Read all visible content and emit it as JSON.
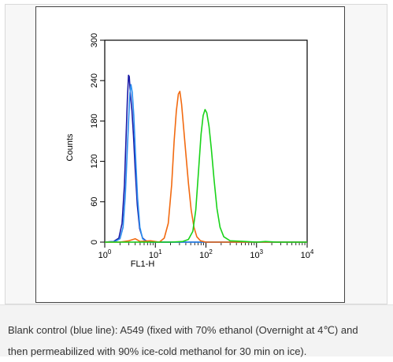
{
  "chart_data": {
    "type": "line",
    "xlabel": "FL1-H",
    "ylabel": "Counts",
    "xscale": "log",
    "xlim": [
      1,
      10000
    ],
    "ylim": [
      0,
      300
    ],
    "x_ticks": [
      {
        "value": 1,
        "base": "10",
        "exp": "0"
      },
      {
        "value": 10,
        "base": "10",
        "exp": "1"
      },
      {
        "value": 100,
        "base": "10",
        "exp": "2"
      },
      {
        "value": 1000,
        "base": "10",
        "exp": "3"
      },
      {
        "value": 10000,
        "base": "10",
        "exp": "4"
      }
    ],
    "y_ticks": [
      "0",
      "60",
      "120",
      "180",
      "240",
      "300"
    ],
    "series": [
      {
        "color": "#1a1aa6",
        "points": [
          [
            1.0,
            0
          ],
          [
            1.5,
            1
          ],
          [
            1.9,
            6
          ],
          [
            2.2,
            28
          ],
          [
            2.45,
            85
          ],
          [
            2.65,
            160
          ],
          [
            2.8,
            212
          ],
          [
            2.95,
            248
          ],
          [
            3.05,
            246
          ],
          [
            3.2,
            222
          ],
          [
            3.45,
            195
          ],
          [
            3.7,
            158
          ],
          [
            4.0,
            108
          ],
          [
            4.4,
            55
          ],
          [
            4.9,
            20
          ],
          [
            5.6,
            6
          ],
          [
            6.5,
            2
          ],
          [
            8,
            0
          ],
          [
            10000,
            0
          ]
        ]
      },
      {
        "color": "#2b8ff0",
        "points": [
          [
            1.0,
            0
          ],
          [
            1.6,
            1
          ],
          [
            2.0,
            5
          ],
          [
            2.3,
            22
          ],
          [
            2.55,
            70
          ],
          [
            2.8,
            140
          ],
          [
            3.0,
            190
          ],
          [
            3.15,
            222
          ],
          [
            3.3,
            234
          ],
          [
            3.5,
            222
          ],
          [
            3.75,
            188
          ],
          [
            4.05,
            130
          ],
          [
            4.45,
            66
          ],
          [
            4.95,
            22
          ],
          [
            5.6,
            5
          ],
          [
            6.6,
            1
          ],
          [
            8.5,
            0
          ],
          [
            10000,
            0
          ]
        ]
      },
      {
        "color": "#f26a10",
        "points": [
          [
            1.0,
            0
          ],
          [
            2.0,
            0
          ],
          [
            3.0,
            2
          ],
          [
            4.0,
            5
          ],
          [
            5.0,
            1
          ],
          [
            8.0,
            2
          ],
          [
            12,
            0
          ],
          [
            15,
            6
          ],
          [
            18,
            28
          ],
          [
            21,
            85
          ],
          [
            23.5,
            150
          ],
          [
            26,
            195
          ],
          [
            28.5,
            220
          ],
          [
            30.5,
            224
          ],
          [
            33,
            205
          ],
          [
            36,
            172
          ],
          [
            40,
            132
          ],
          [
            45,
            88
          ],
          [
            51,
            48
          ],
          [
            58,
            22
          ],
          [
            66,
            8
          ],
          [
            78,
            2
          ],
          [
            100,
            0
          ],
          [
            10000,
            0
          ]
        ]
      },
      {
        "color": "#19d319",
        "points": [
          [
            1.0,
            0
          ],
          [
            20,
            0
          ],
          [
            35,
            1
          ],
          [
            45,
            4
          ],
          [
            55,
            16
          ],
          [
            63,
            48
          ],
          [
            72,
            110
          ],
          [
            80,
            160
          ],
          [
            88,
            188
          ],
          [
            96,
            197
          ],
          [
            104,
            192
          ],
          [
            115,
            172
          ],
          [
            128,
            138
          ],
          [
            145,
            92
          ],
          [
            165,
            50
          ],
          [
            190,
            22
          ],
          [
            225,
            8
          ],
          [
            300,
            2
          ],
          [
            600,
            1
          ],
          [
            1000,
            0
          ],
          [
            1500,
            1
          ],
          [
            2500,
            0
          ],
          [
            10000,
            0
          ]
        ]
      }
    ]
  },
  "caption": {
    "line1": "Blank control (blue line): A549 (fixed with 70% ethanol (Overnight at 4℃) and",
    "line2": "then permeabilized with 90% ice-cold methanol for 30 min on ice)."
  }
}
